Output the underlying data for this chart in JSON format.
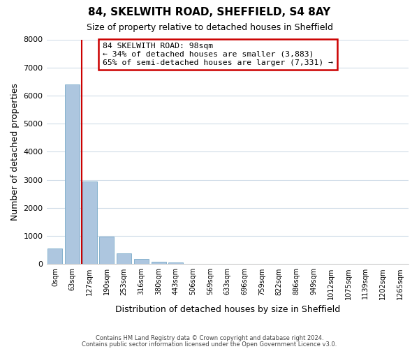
{
  "title": "84, SKELWITH ROAD, SHEFFIELD, S4 8AY",
  "subtitle": "Size of property relative to detached houses in Sheffield",
  "xlabel": "Distribution of detached houses by size in Sheffield",
  "ylabel": "Number of detached properties",
  "bar_labels": [
    "0sqm",
    "63sqm",
    "127sqm",
    "190sqm",
    "253sqm",
    "316sqm",
    "380sqm",
    "443sqm",
    "506sqm",
    "569sqm",
    "633sqm",
    "696sqm",
    "759sqm",
    "822sqm",
    "886sqm",
    "949sqm",
    "1012sqm",
    "1075sqm",
    "1139sqm",
    "1202sqm",
    "1265sqm"
  ],
  "bar_values": [
    560,
    6400,
    2940,
    975,
    380,
    175,
    90,
    45,
    0,
    0,
    0,
    0,
    0,
    0,
    0,
    0,
    0,
    0,
    0,
    0,
    0
  ],
  "bar_color": "#adc6df",
  "bar_edge_color": "#7aaac8",
  "property_line_x": 1.56,
  "property_line_color": "#cc0000",
  "ylim": [
    0,
    8000
  ],
  "yticks": [
    0,
    1000,
    2000,
    3000,
    4000,
    5000,
    6000,
    7000,
    8000
  ],
  "annotation_title": "84 SKELWITH ROAD: 98sqm",
  "annotation_line1": "← 34% of detached houses are smaller (3,883)",
  "annotation_line2": "65% of semi-detached houses are larger (7,331) →",
  "annotation_box_color": "#cc0000",
  "footer1": "Contains HM Land Registry data © Crown copyright and database right 2024.",
  "footer2": "Contains public sector information licensed under the Open Government Licence v3.0.",
  "bg_color": "#ffffff",
  "plot_bg_color": "#ffffff",
  "grid_color": "#d0dce8"
}
